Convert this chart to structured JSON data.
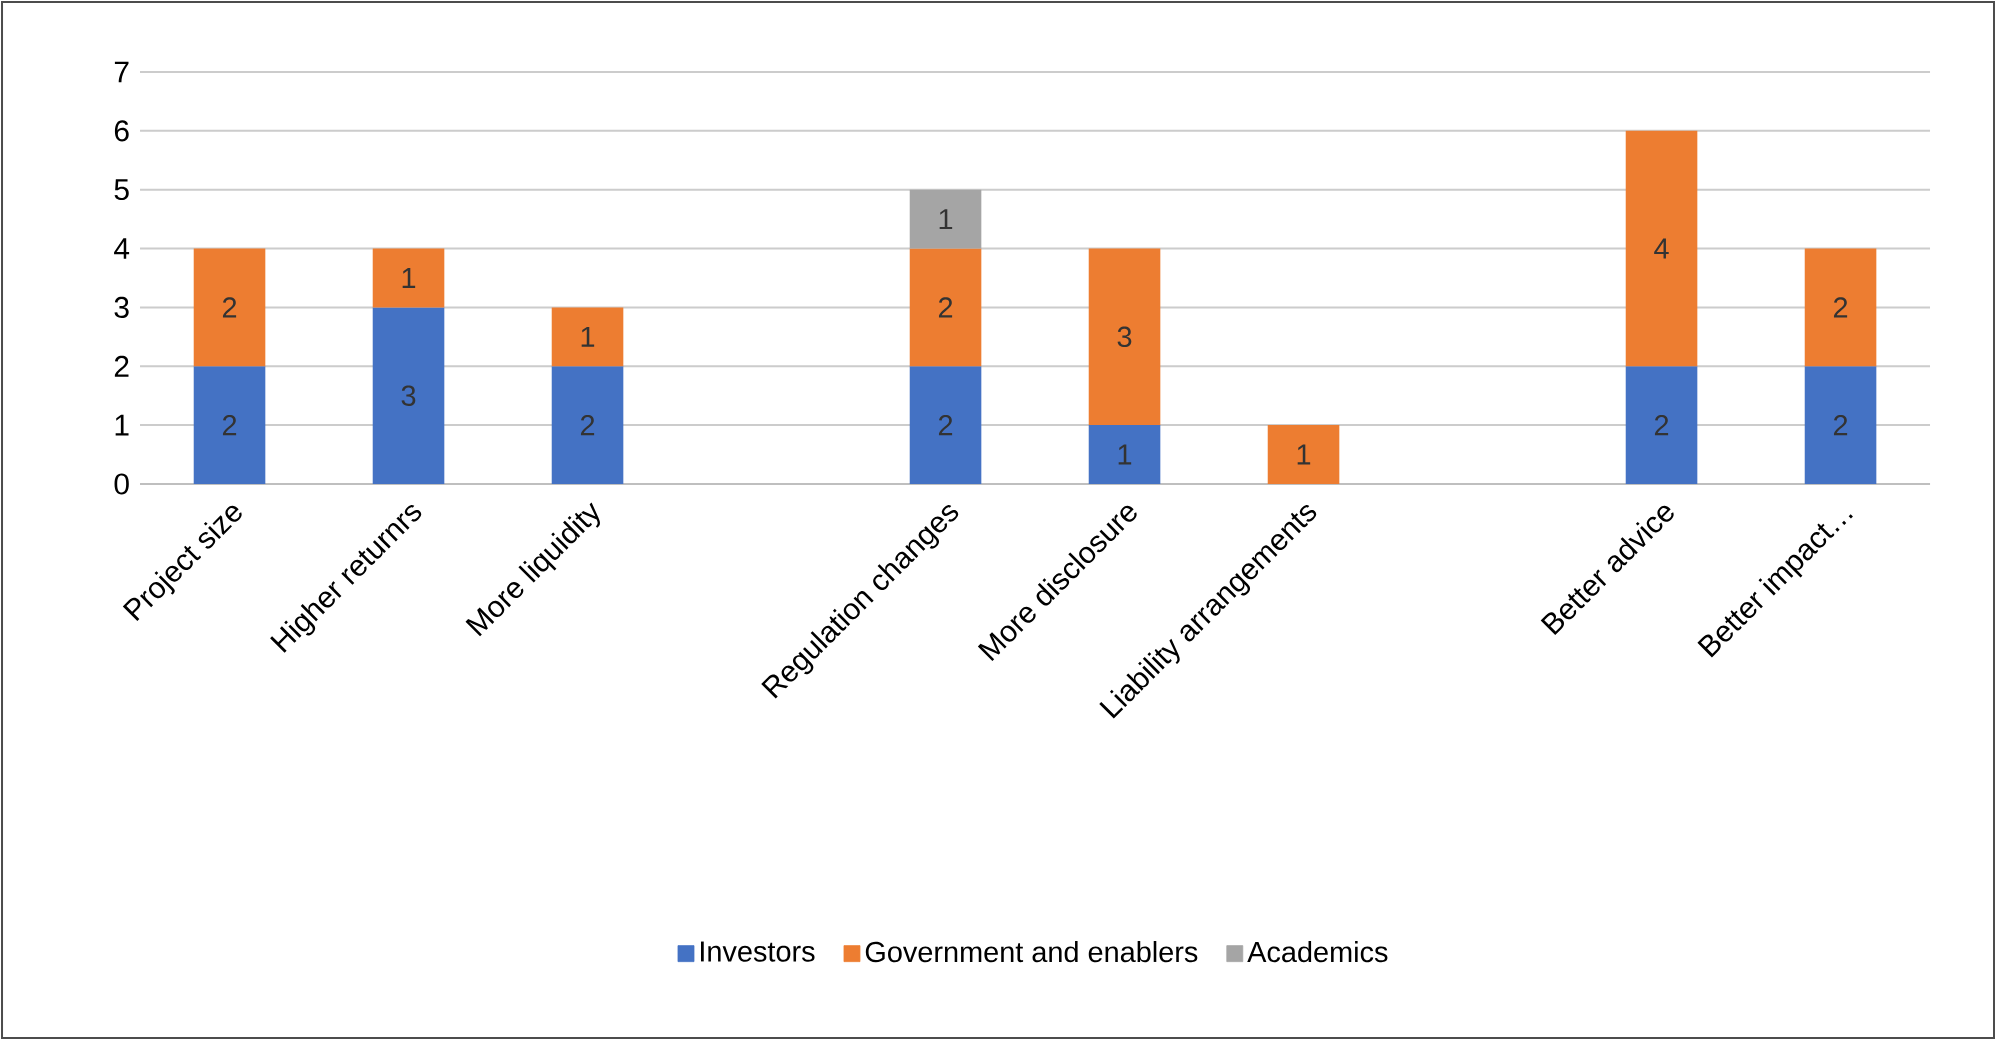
{
  "chart_data": {
    "type": "bar",
    "stacked": true,
    "categories": [
      "Project size",
      "Higher returnrs",
      "More liquidity",
      null,
      "Regulation changes",
      "More disclosure",
      "Liability arrangements",
      null,
      "Better advice",
      "Better impact…"
    ],
    "series": [
      {
        "name": "Investors",
        "color": "#4472c4",
        "values": [
          2,
          3,
          2,
          null,
          2,
          1,
          null,
          null,
          2,
          2
        ]
      },
      {
        "name": "Government and enablers",
        "color": "#ed7d31",
        "values": [
          2,
          1,
          1,
          null,
          2,
          3,
          1,
          null,
          4,
          2
        ]
      },
      {
        "name": "Academics",
        "color": "#a5a5a5",
        "values": [
          null,
          null,
          null,
          null,
          1,
          null,
          null,
          null,
          null,
          null
        ]
      }
    ],
    "ylim": [
      0,
      7
    ],
    "yticks": [
      0,
      1,
      2,
      3,
      4,
      5,
      6,
      7
    ],
    "grid": "y",
    "legend": "bottom",
    "data_labels": true
  }
}
